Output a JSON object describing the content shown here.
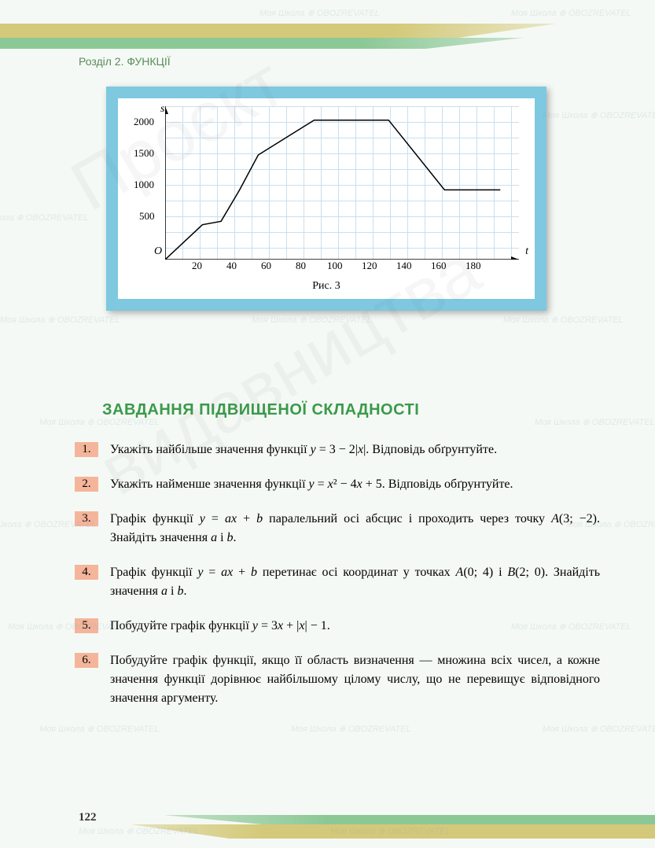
{
  "chapter": "Розділ 2. ФУНКЦІЇ",
  "chart": {
    "type": "line",
    "y_axis_symbol": "s",
    "x_axis_symbol": "t",
    "origin_symbol": "O",
    "y_ticks": [
      "500",
      "1000",
      "1500",
      "2000"
    ],
    "x_ticks": [
      "20",
      "40",
      "60",
      "80",
      "100",
      "120",
      "140",
      "160",
      "180"
    ],
    "caption": "Рис. 3",
    "line_color": "#000",
    "line_width": 1.5,
    "points_t": [
      0,
      20,
      30,
      40,
      50,
      80,
      120,
      150,
      180
    ],
    "points_s": [
      0,
      500,
      550,
      1000,
      1500,
      2000,
      2000,
      1000,
      1000
    ],
    "xlim": [
      0,
      190
    ],
    "ylim": [
      0,
      2200
    ],
    "grid_color": "#c8e0f0",
    "background": "#ffffff",
    "frame_color": "#7ec8e0"
  },
  "section_title": "ЗАВДАННЯ ПІДВИЩЕНОЇ СКЛАДНОСТІ",
  "tasks": [
    {
      "num": "1.",
      "text": "Укажіть найбільше значення функції y = 3 − 2| x |. Відповідь обґрунтуйте."
    },
    {
      "num": "2.",
      "text": "Укажіть найменше значення функції y = x² − 4x + 5. Відповідь обґрунтуйте."
    },
    {
      "num": "3.",
      "text": "Графік функції y = ax + b паралельний осі абсцис і проходить через точку A(3; −2). Знайдіть значення a і b."
    },
    {
      "num": "4.",
      "text": "Графік функції y = ax + b перетинає осі координат у точках A(0; 4) і B(2; 0). Знайдіть значення a і b."
    },
    {
      "num": "5.",
      "text": "Побудуйте графік функції y = 3x + | x | − 1."
    },
    {
      "num": "6.",
      "text": "Побудуйте графік функції, якщо її область визначення — множина всіх чисел, а кожне значення функції дорівнює найбільшому цілому числу, що не перевищує відповідного значення аргументу."
    }
  ],
  "page_number": "122",
  "watermark_small": "Моя Школа ⊕ OBOZREVATEL",
  "watermark_big1": "Проєкт",
  "watermark_big2": "видавництва",
  "colors": {
    "section_title": "#3a9a4a",
    "task_num_bg": "#f4b59a",
    "page_bg": "#f5f9f5",
    "top_yellow": "#d4c97a",
    "top_green": "#8cc896"
  }
}
